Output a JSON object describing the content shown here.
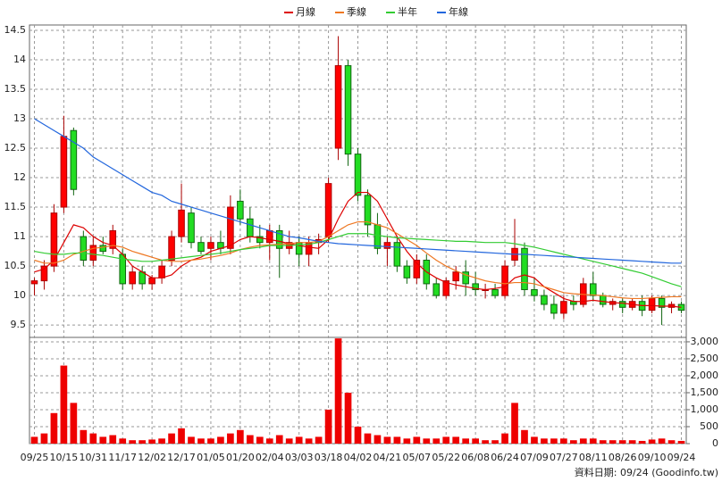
{
  "chart_data": {
    "type": "candlestick",
    "categories": [
      "09/25",
      null,
      null,
      "10/15",
      null,
      null,
      "10/31",
      null,
      null,
      "11/17",
      null,
      null,
      "12/02",
      null,
      null,
      "12/17",
      null,
      null,
      "01/05",
      null,
      null,
      "01/20",
      null,
      null,
      "02/04",
      null,
      null,
      "03/03",
      null,
      null,
      "03/18",
      null,
      null,
      "04/02",
      null,
      null,
      "04/21",
      null,
      null,
      "05/07",
      null,
      null,
      "05/22",
      null,
      null,
      "06/08",
      null,
      null,
      "06/24",
      null,
      null,
      "07/09",
      null,
      null,
      "07/27",
      null,
      null,
      "08/11",
      null,
      null,
      "08/26",
      null,
      null,
      "09/10",
      null,
      null,
      "09/24"
    ],
    "open": [
      10.2,
      10.25,
      10.5,
      11.5,
      12.8,
      11.0,
      10.6,
      10.85,
      10.8,
      10.7,
      10.2,
      10.4,
      10.2,
      10.3,
      10.6,
      11.0,
      11.4,
      10.9,
      10.8,
      10.9,
      10.8,
      11.6,
      11.3,
      11.0,
      10.9,
      11.1,
      10.8,
      10.9,
      10.7,
      10.9,
      11.0,
      12.5,
      13.9,
      12.4,
      11.7,
      11.2,
      10.8,
      10.9,
      10.5,
      10.3,
      10.6,
      10.2,
      10.0,
      10.25,
      10.4,
      10.2,
      10.1,
      10.1,
      10.0,
      10.6,
      10.8,
      10.1,
      10.0,
      9.85,
      9.7,
      9.9,
      9.85,
      10.2,
      10.0,
      9.85,
      9.9,
      9.8,
      9.9,
      9.75,
      9.95,
      9.8,
      9.85
    ],
    "high": [
      10.3,
      10.6,
      11.55,
      13.05,
      12.85,
      11.1,
      11.0,
      11.0,
      11.2,
      10.8,
      10.5,
      10.5,
      10.35,
      10.6,
      11.1,
      11.9,
      11.5,
      11.0,
      11.0,
      11.1,
      11.7,
      11.8,
      11.5,
      11.2,
      11.2,
      11.2,
      11.1,
      11.0,
      11.0,
      11.05,
      12.0,
      14.4,
      14.0,
      12.5,
      11.8,
      11.4,
      11.0,
      11.0,
      10.6,
      10.7,
      10.7,
      10.3,
      10.3,
      10.5,
      10.6,
      10.4,
      10.2,
      10.2,
      10.6,
      11.3,
      10.9,
      10.3,
      10.1,
      10.0,
      10.0,
      10.0,
      10.3,
      10.4,
      10.05,
      9.95,
      9.95,
      9.95,
      10.0,
      10.0,
      10.0,
      9.9,
      9.9
    ],
    "low": [
      10.0,
      10.1,
      10.4,
      11.4,
      11.7,
      10.5,
      10.5,
      10.7,
      10.7,
      10.1,
      10.1,
      10.1,
      10.1,
      10.2,
      10.5,
      10.9,
      10.8,
      10.7,
      10.6,
      10.7,
      10.7,
      11.2,
      10.9,
      10.8,
      10.6,
      10.3,
      10.7,
      10.5,
      10.5,
      10.7,
      10.9,
      12.3,
      12.2,
      11.6,
      11.0,
      10.7,
      10.5,
      10.4,
      10.2,
      10.2,
      10.1,
      9.95,
      9.95,
      10.1,
      10.0,
      10.0,
      9.95,
      9.95,
      9.95,
      10.5,
      10.0,
      9.9,
      9.75,
      9.6,
      9.6,
      9.75,
      9.8,
      9.9,
      9.8,
      9.75,
      9.7,
      9.75,
      9.65,
      9.7,
      9.5,
      9.7,
      9.7
    ],
    "close": [
      10.25,
      10.5,
      11.4,
      12.7,
      11.8,
      10.6,
      10.85,
      10.75,
      11.1,
      10.2,
      10.4,
      10.2,
      10.3,
      10.5,
      11.0,
      11.45,
      10.9,
      10.75,
      10.9,
      10.8,
      11.5,
      11.3,
      11.0,
      10.9,
      11.1,
      10.8,
      10.9,
      10.7,
      10.9,
      10.95,
      11.9,
      13.9,
      12.4,
      11.7,
      11.2,
      10.8,
      10.9,
      10.5,
      10.3,
      10.6,
      10.2,
      10.0,
      10.25,
      10.4,
      10.2,
      10.1,
      10.1,
      10.0,
      10.5,
      10.8,
      10.1,
      10.0,
      9.85,
      9.7,
      9.9,
      9.85,
      10.2,
      10.0,
      9.85,
      9.9,
      9.8,
      9.9,
      9.75,
      9.95,
      9.8,
      9.85,
      9.75
    ],
    "up_color": "#ff0000",
    "down_color": "#22dd22",
    "ylim": [
      9.29,
      14.59
    ],
    "yticks": [
      9.5,
      10,
      10.5,
      11,
      11.5,
      12,
      12.5,
      13,
      13.5,
      14,
      14.5
    ],
    "series": [
      {
        "name": "月線",
        "color": "#dd0000",
        "values": [
          10.4,
          10.45,
          10.6,
          10.9,
          11.2,
          11.15,
          11.0,
          10.9,
          10.85,
          10.7,
          10.5,
          10.4,
          10.3,
          10.3,
          10.35,
          10.5,
          10.6,
          10.65,
          10.75,
          10.8,
          10.85,
          10.95,
          11.0,
          10.98,
          10.95,
          10.92,
          10.88,
          10.85,
          10.82,
          10.8,
          10.95,
          11.3,
          11.6,
          11.75,
          11.75,
          11.6,
          11.3,
          11.0,
          10.75,
          10.55,
          10.4,
          10.3,
          10.22,
          10.18,
          10.15,
          10.12,
          10.1,
          10.12,
          10.15,
          10.3,
          10.35,
          10.3,
          10.15,
          10.05,
          9.95,
          9.9,
          9.9,
          9.92,
          9.9,
          9.88,
          9.87,
          9.85,
          9.83,
          9.83,
          9.82,
          9.82,
          9.8
        ]
      },
      {
        "name": "季線",
        "color": "#ee7722",
        "values": [
          10.6,
          10.55,
          10.55,
          10.6,
          10.7,
          10.75,
          10.8,
          10.82,
          10.85,
          10.82,
          10.75,
          10.7,
          10.65,
          10.6,
          10.58,
          10.58,
          10.6,
          10.62,
          10.65,
          10.68,
          10.72,
          10.78,
          10.82,
          10.85,
          10.86,
          10.87,
          10.88,
          10.9,
          10.9,
          10.92,
          11.0,
          11.1,
          11.2,
          11.25,
          11.25,
          11.2,
          11.15,
          11.05,
          10.95,
          10.85,
          10.72,
          10.6,
          10.5,
          10.42,
          10.35,
          10.3,
          10.25,
          10.22,
          10.2,
          10.22,
          10.22,
          10.2,
          10.15,
          10.1,
          10.05,
          10.03,
          10.02,
          10.01,
          10.0,
          9.98,
          9.96,
          9.95,
          9.95,
          9.96,
          9.97,
          9.98,
          9.98
        ]
      },
      {
        "name": "半年",
        "color": "#33cc33",
        "values": [
          10.75,
          10.72,
          10.7,
          10.7,
          10.72,
          10.72,
          10.7,
          10.68,
          10.65,
          10.62,
          10.6,
          10.58,
          10.58,
          10.6,
          10.62,
          10.64,
          10.66,
          10.68,
          10.7,
          10.72,
          10.75,
          10.78,
          10.8,
          10.82,
          10.85,
          10.85,
          10.85,
          10.86,
          10.87,
          10.9,
          10.95,
          11.0,
          11.05,
          11.05,
          11.05,
          11.02,
          11.0,
          10.98,
          10.97,
          10.96,
          10.95,
          10.94,
          10.93,
          10.92,
          10.92,
          10.91,
          10.9,
          10.9,
          10.9,
          10.88,
          10.85,
          10.82,
          10.78,
          10.74,
          10.7,
          10.66,
          10.62,
          10.58,
          10.54,
          10.5,
          10.46,
          10.42,
          10.38,
          10.32,
          10.26,
          10.2,
          10.15
        ]
      },
      {
        "name": "年線",
        "color": "#2266dd",
        "values": [
          13.0,
          12.9,
          12.8,
          12.7,
          12.6,
          12.5,
          12.35,
          12.25,
          12.15,
          12.05,
          11.95,
          11.85,
          11.75,
          11.7,
          11.6,
          11.55,
          11.5,
          11.45,
          11.4,
          11.35,
          11.3,
          11.25,
          11.2,
          11.15,
          11.1,
          11.05,
          11.0,
          10.98,
          10.95,
          10.92,
          10.9,
          10.88,
          10.87,
          10.86,
          10.85,
          10.84,
          10.83,
          10.82,
          10.81,
          10.8,
          10.79,
          10.78,
          10.77,
          10.76,
          10.75,
          10.74,
          10.73,
          10.72,
          10.71,
          10.7,
          10.7,
          10.69,
          10.68,
          10.67,
          10.66,
          10.65,
          10.64,
          10.63,
          10.62,
          10.61,
          10.6,
          10.59,
          10.58,
          10.57,
          10.56,
          10.55,
          10.55
        ]
      }
    ],
    "volume": {
      "color": "#ee0000",
      "axis": "y2",
      "values": [
        200,
        300,
        900,
        2300,
        1200,
        400,
        300,
        200,
        250,
        150,
        100,
        100,
        120,
        150,
        300,
        450,
        200,
        150,
        150,
        200,
        300,
        400,
        250,
        200,
        150,
        250,
        150,
        200,
        150,
        200,
        1000,
        3100,
        1500,
        500,
        300,
        250,
        200,
        200,
        150,
        200,
        150,
        150,
        200,
        200,
        150,
        150,
        100,
        100,
        300,
        1200,
        400,
        200,
        150,
        150,
        150,
        100,
        150,
        150,
        100,
        100,
        100,
        100,
        80,
        120,
        150,
        100,
        80
      ]
    },
    "y2lim": [
      0,
      3130
    ],
    "y2ticks": [
      0,
      500,
      {
        "value": 1000,
        "label": "1,000"
      },
      {
        "value": 1500,
        "label": "1,500"
      },
      {
        "value": 2000,
        "label": "2,000"
      },
      {
        "value": 2500,
        "label": "2,500"
      },
      {
        "value": 3000,
        "label": "3,000"
      }
    ],
    "grid": true,
    "footnote": "資料日期: 09/24 (Goodinfo.tw)"
  }
}
